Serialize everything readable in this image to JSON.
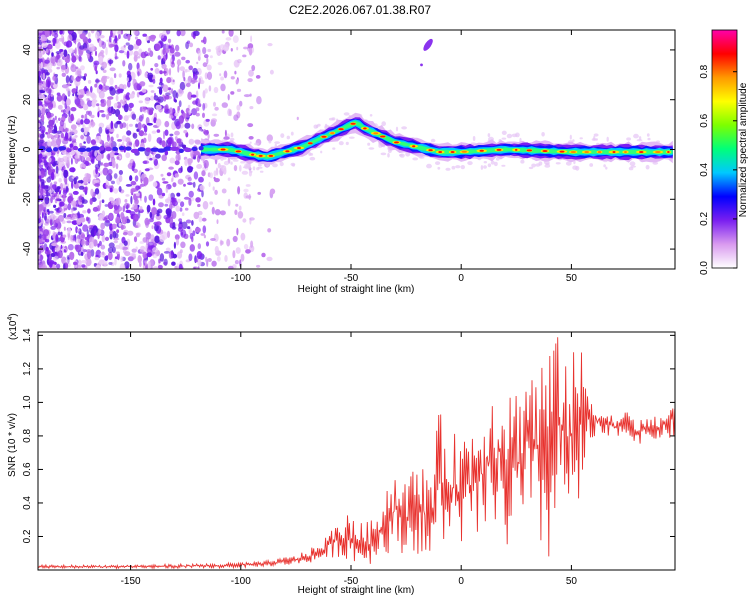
{
  "title": "C2E2.2026.067.01.38.R07",
  "chart_data": [
    {
      "type": "heatmap",
      "description_key": "spectrogram",
      "xlabel": "Height of straight line (km)",
      "ylabel": "Frequency (Hz)",
      "xlim": [
        -192,
        97
      ],
      "ylim": [
        -48,
        48
      ],
      "xticks": [
        -150,
        -100,
        -50,
        0,
        50
      ],
      "yticks": [
        -40,
        -20,
        0,
        20,
        40
      ],
      "ridge": {
        "x": [
          -192,
          -150,
          -115,
          -105,
          -95,
          -88,
          -80,
          -72,
          -65,
          -60,
          -55,
          -50,
          -47,
          -45,
          -40,
          -35,
          -30,
          -25,
          -20,
          -15,
          -10,
          0,
          20,
          50,
          80,
          97
        ],
        "freq": [
          0,
          0,
          0,
          0,
          -2,
          -3,
          -1,
          1,
          4,
          6,
          8,
          10,
          11,
          9,
          7,
          5,
          3,
          2,
          1,
          0,
          -1,
          -1,
          0,
          -1,
          -1,
          -1
        ]
      },
      "blob": {
        "x": -15,
        "freq": 42
      },
      "colorbar": {
        "label": "Normalized spectral amplitude",
        "ticks": [
          0.0,
          0.2,
          0.4,
          0.6,
          0.8
        ],
        "tick_labels": [
          "0.0",
          "0.2",
          "0.4",
          "0.6",
          "0.8"
        ],
        "range": [
          0,
          0.97
        ],
        "colors": [
          "#ffffff",
          "#d99aef",
          "#7a1ff0",
          "#0000ff",
          "#00c8ff",
          "#00ff7a",
          "#7dff00",
          "#ffff00",
          "#ff9900",
          "#ff0000",
          "#ff00aa"
        ]
      }
    },
    {
      "type": "line",
      "description_key": "snr",
      "xlabel": "Height of straight line (km)",
      "ylabel": "SNR (10 * v/v)",
      "yscale_label": "(x10",
      "yscale_exponent": "4",
      "scale_suffix": ")",
      "xlim": [
        -192,
        97
      ],
      "ylim": [
        0.0,
        1.42
      ],
      "xticks": [
        -150,
        -100,
        -50,
        0,
        50
      ],
      "yticks": [
        0.2,
        0.4,
        0.6,
        0.8,
        1.0,
        1.2,
        1.4
      ],
      "envelope_x": [
        -192,
        -150,
        -110,
        -90,
        -75,
        -65,
        -55,
        -50,
        -45,
        -40,
        -35,
        -30,
        -25,
        -20,
        -15,
        -10,
        -5,
        0,
        5,
        10,
        15,
        20,
        25,
        30,
        35,
        40,
        45,
        50,
        55,
        60,
        65,
        70,
        75,
        80,
        90,
        97
      ],
      "envelope_hi": [
        0.03,
        0.03,
        0.04,
        0.05,
        0.09,
        0.15,
        0.3,
        0.35,
        0.28,
        0.3,
        0.5,
        0.6,
        0.55,
        0.65,
        0.6,
        0.95,
        0.8,
        0.85,
        0.9,
        1.0,
        1.1,
        1.2,
        1.1,
        1.3,
        1.25,
        1.4,
        1.4,
        1.3,
        1.35,
        1.05,
        0.95,
        0.92,
        0.95,
        0.9,
        0.92,
        1.02
      ],
      "envelope_lo": [
        0.01,
        0.01,
        0.01,
        0.02,
        0.03,
        0.05,
        0.08,
        0.05,
        0.02,
        0.04,
        0.1,
        0.1,
        0.1,
        0.1,
        0.02,
        0.1,
        0.2,
        0.15,
        0.1,
        0.2,
        0.3,
        0.05,
        0.2,
        0.2,
        0.1,
        0.0,
        0.4,
        0.2,
        0.4,
        0.75,
        0.78,
        0.8,
        0.8,
        0.75,
        0.78,
        0.78
      ],
      "color": "#e8332f"
    }
  ]
}
